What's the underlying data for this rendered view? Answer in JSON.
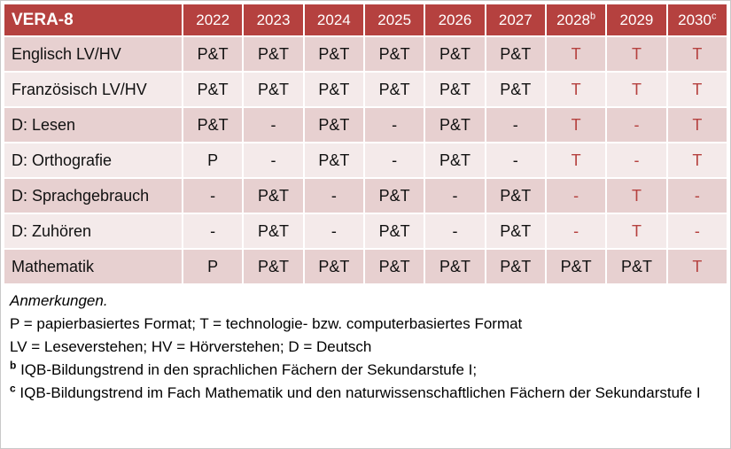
{
  "colors": {
    "header_bg": "#b5413f",
    "band_dark": "#e7d0d0",
    "band_light": "#f4eaea",
    "accent_text": "#b5413f"
  },
  "table": {
    "title": "VERA-8",
    "year_columns": [
      {
        "label": "2022",
        "sup": ""
      },
      {
        "label": "2023",
        "sup": ""
      },
      {
        "label": "2024",
        "sup": ""
      },
      {
        "label": "2025",
        "sup": ""
      },
      {
        "label": "2026",
        "sup": ""
      },
      {
        "label": "2027",
        "sup": ""
      },
      {
        "label": "2028",
        "sup": "b"
      },
      {
        "label": "2029",
        "sup": ""
      },
      {
        "label": "2030",
        "sup": "c"
      }
    ],
    "rows": [
      {
        "label": "Englisch LV/HV",
        "cells": [
          {
            "text": "P&T",
            "red": false
          },
          {
            "text": "P&T",
            "red": false
          },
          {
            "text": "P&T",
            "red": false
          },
          {
            "text": "P&T",
            "red": false
          },
          {
            "text": "P&T",
            "red": false
          },
          {
            "text": "P&T",
            "red": false
          },
          {
            "text": "T",
            "red": true
          },
          {
            "text": "T",
            "red": true
          },
          {
            "text": "T",
            "red": true
          }
        ]
      },
      {
        "label": "Französisch LV/HV",
        "cells": [
          {
            "text": "P&T",
            "red": false
          },
          {
            "text": "P&T",
            "red": false
          },
          {
            "text": "P&T",
            "red": false
          },
          {
            "text": "P&T",
            "red": false
          },
          {
            "text": "P&T",
            "red": false
          },
          {
            "text": "P&T",
            "red": false
          },
          {
            "text": "T",
            "red": true
          },
          {
            "text": "T",
            "red": true
          },
          {
            "text": "T",
            "red": true
          }
        ]
      },
      {
        "label": "D: Lesen",
        "cells": [
          {
            "text": "P&T",
            "red": false
          },
          {
            "text": "-",
            "red": false
          },
          {
            "text": "P&T",
            "red": false
          },
          {
            "text": "-",
            "red": false
          },
          {
            "text": "P&T",
            "red": false
          },
          {
            "text": "-",
            "red": false
          },
          {
            "text": "T",
            "red": true
          },
          {
            "text": "-",
            "red": true
          },
          {
            "text": "T",
            "red": true
          }
        ]
      },
      {
        "label": "D: Orthografie",
        "cells": [
          {
            "text": "P",
            "red": false
          },
          {
            "text": "-",
            "red": false
          },
          {
            "text": "P&T",
            "red": false
          },
          {
            "text": "-",
            "red": false
          },
          {
            "text": "P&T",
            "red": false
          },
          {
            "text": "-",
            "red": false
          },
          {
            "text": "T",
            "red": true
          },
          {
            "text": "-",
            "red": true
          },
          {
            "text": "T",
            "red": true
          }
        ]
      },
      {
        "label": "D: Sprachgebrauch",
        "cells": [
          {
            "text": "-",
            "red": false
          },
          {
            "text": "P&T",
            "red": false
          },
          {
            "text": "-",
            "red": false
          },
          {
            "text": "P&T",
            "red": false
          },
          {
            "text": "-",
            "red": false
          },
          {
            "text": "P&T",
            "red": false
          },
          {
            "text": "-",
            "red": true
          },
          {
            "text": "T",
            "red": true
          },
          {
            "text": "-",
            "red": true
          }
        ]
      },
      {
        "label": "D: Zuhören",
        "cells": [
          {
            "text": "-",
            "red": false
          },
          {
            "text": "P&T",
            "red": false
          },
          {
            "text": "-",
            "red": false
          },
          {
            "text": "P&T",
            "red": false
          },
          {
            "text": "-",
            "red": false
          },
          {
            "text": "P&T",
            "red": false
          },
          {
            "text": "-",
            "red": true
          },
          {
            "text": "T",
            "red": true
          },
          {
            "text": "-",
            "red": true
          }
        ]
      },
      {
        "label": "Mathematik",
        "cells": [
          {
            "text": "P",
            "red": false
          },
          {
            "text": "P&T",
            "red": false
          },
          {
            "text": "P&T",
            "red": false
          },
          {
            "text": "P&T",
            "red": false
          },
          {
            "text": "P&T",
            "red": false
          },
          {
            "text": "P&T",
            "red": false
          },
          {
            "text": "P&T",
            "red": false
          },
          {
            "text": "P&T",
            "red": false
          },
          {
            "text": "T",
            "red": true
          }
        ]
      }
    ]
  },
  "notes": [
    {
      "sup": "",
      "text": "Anmerkungen.",
      "italic": true
    },
    {
      "sup": "",
      "text": "P = papierbasiertes Format; T = technologie- bzw. computerbasiertes Format",
      "italic": false
    },
    {
      "sup": "",
      "text": "LV = Leseverstehen; HV = Hörverstehen; D = Deutsch",
      "italic": false
    },
    {
      "sup": "b",
      "text": "IQB-Bildungstrend in den sprachlichen Fächern der Sekundarstufe I;",
      "italic": false
    },
    {
      "sup": "c",
      "text": "IQB-Bildungstrend im Fach Mathematik und den naturwissenschaftlichen Fächern der Sekundarstufe I",
      "italic": false
    }
  ]
}
